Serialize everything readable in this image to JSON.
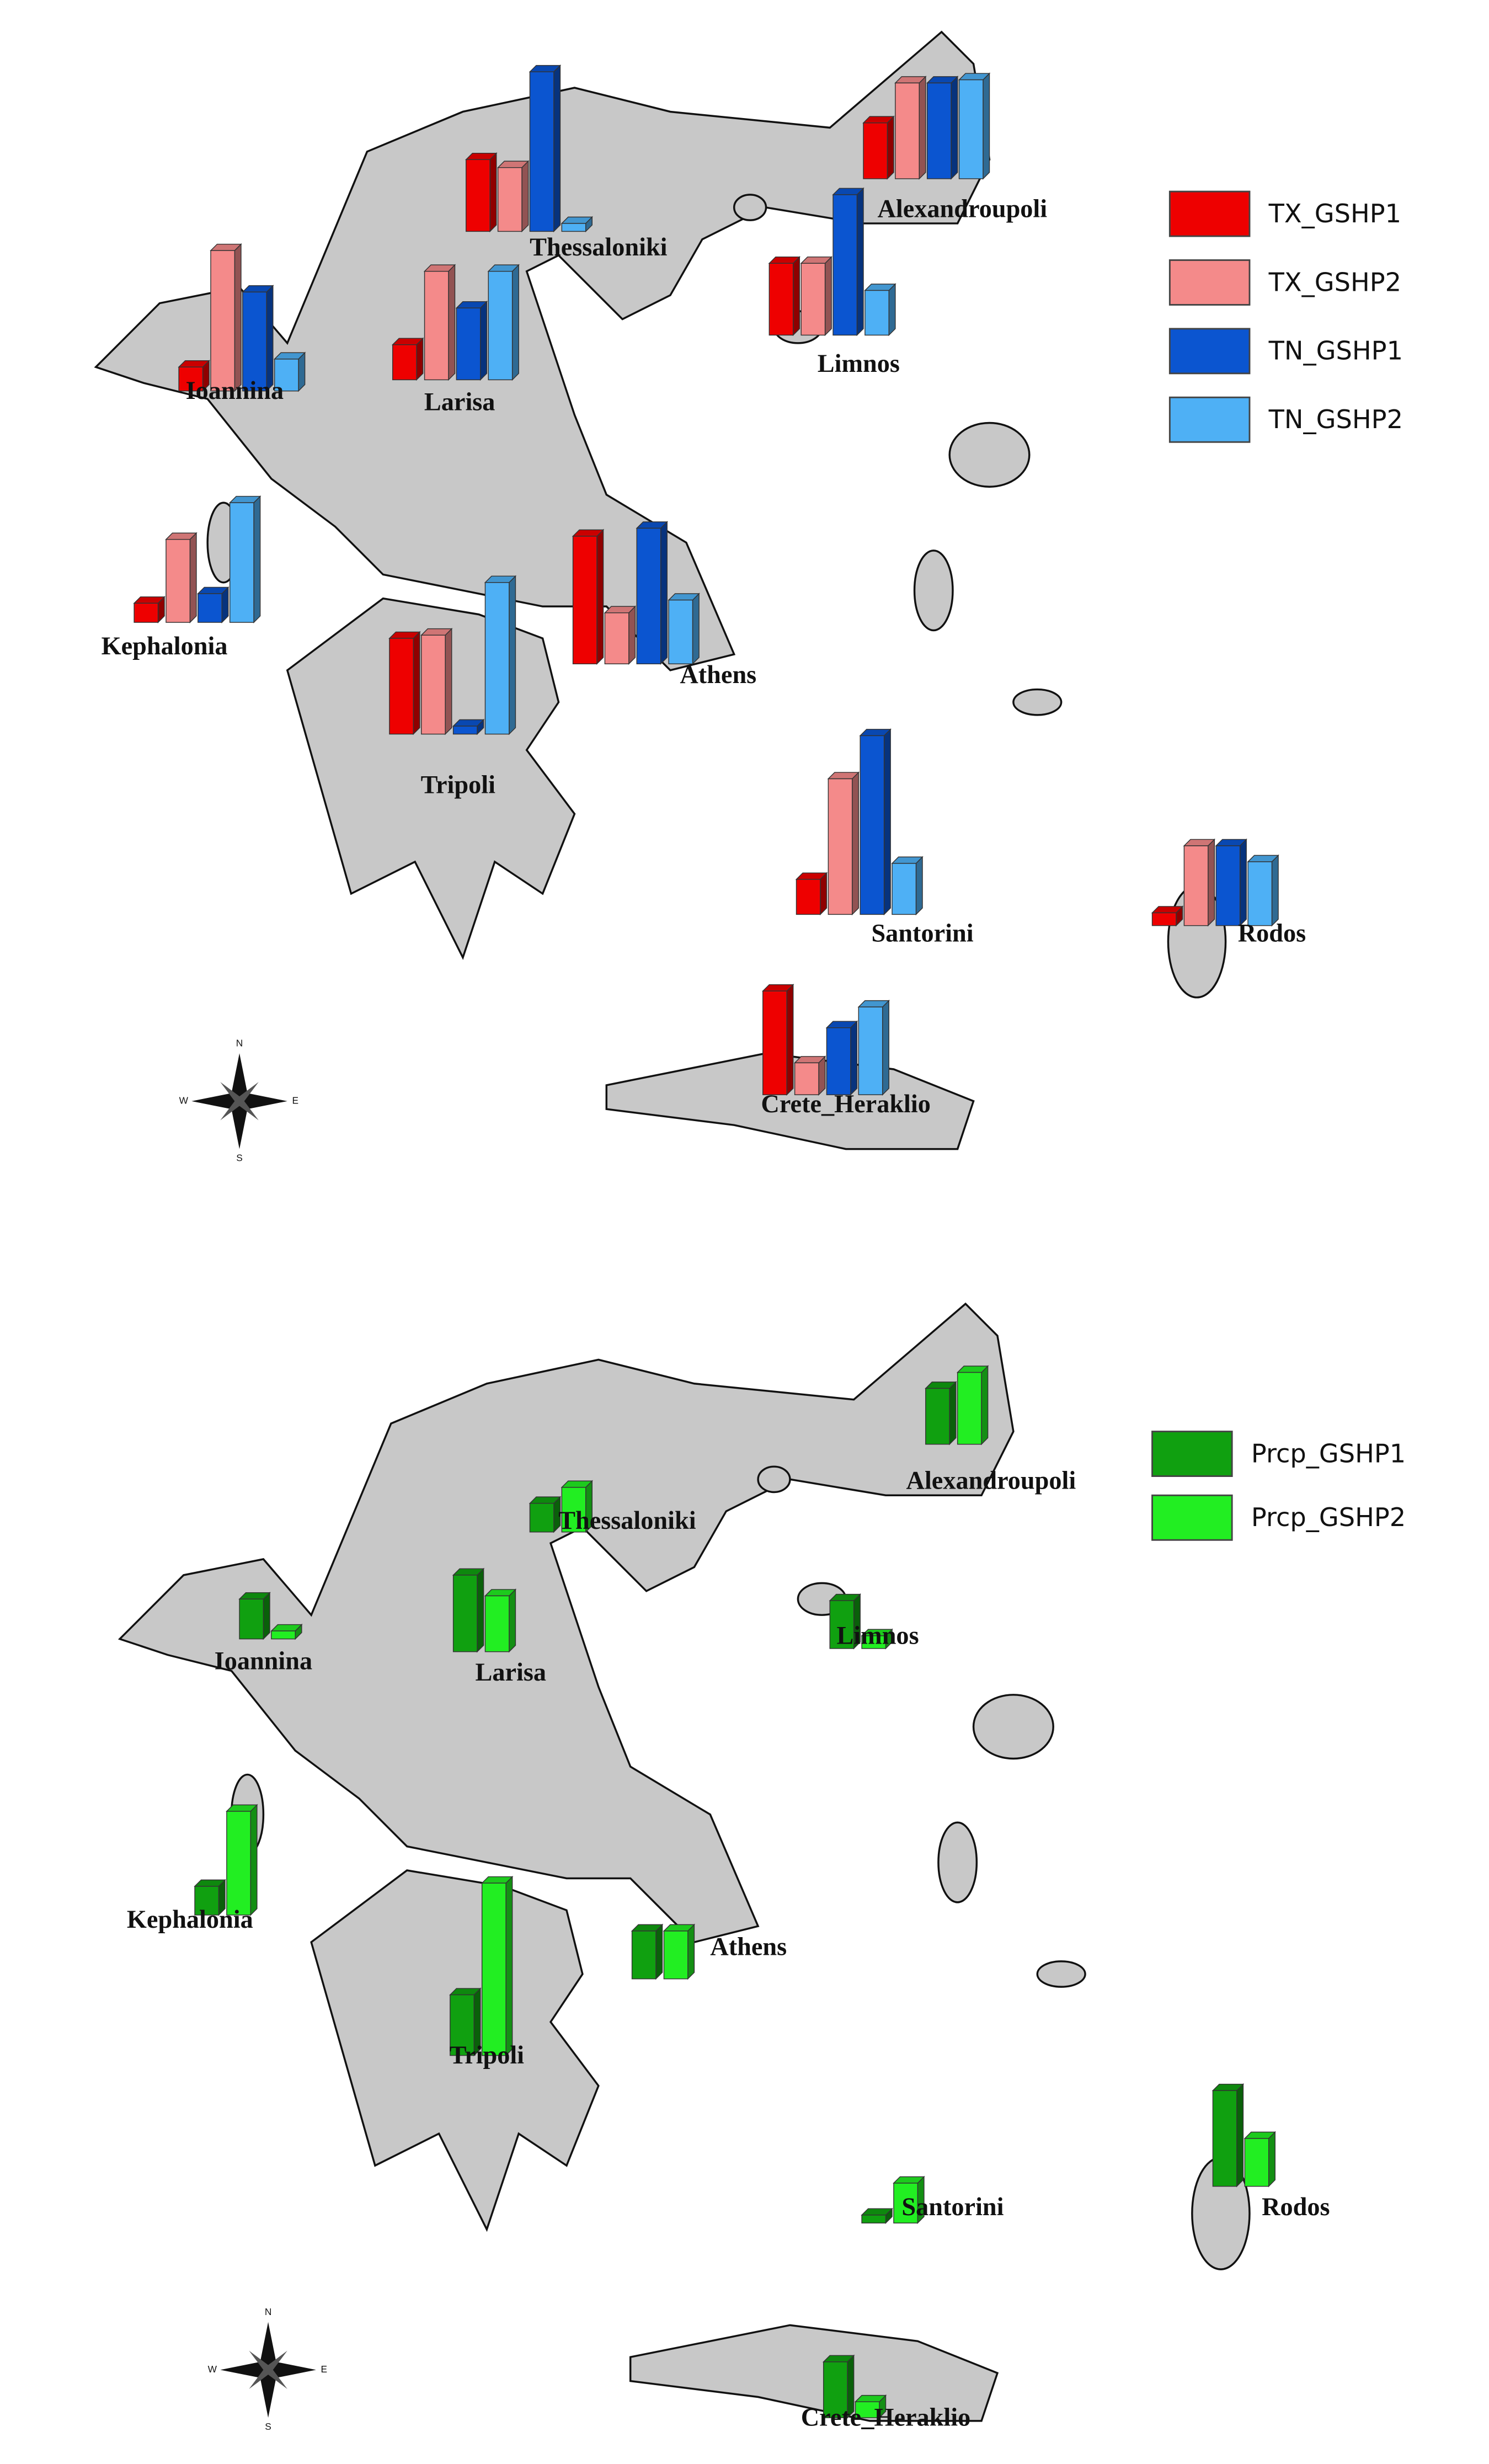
{
  "maps": [
    {
      "legend": [
        {
          "name": "TX_GSHP1",
          "color": "#ee0000"
        },
        {
          "name": "TX_GSHP2",
          "color": "#f48a8a"
        },
        {
          "name": "TN_GSHP1",
          "color": "#0b55d0"
        },
        {
          "name": "TN_GSHP2",
          "color": "#4eb0f5"
        }
      ],
      "cities": [
        {
          "name": "Thessaloniki",
          "values": [
            45,
            40,
            100,
            5
          ]
        },
        {
          "name": "Alexandroupoli",
          "values": [
            35,
            60,
            60,
            62
          ]
        },
        {
          "name": "Ioannina",
          "values": [
            15,
            88,
            62,
            20
          ]
        },
        {
          "name": "Larisa",
          "values": [
            22,
            68,
            45,
            68
          ]
        },
        {
          "name": "Limnos",
          "values": [
            45,
            45,
            88,
            28
          ]
        },
        {
          "name": "Kephalonia",
          "values": [
            12,
            52,
            18,
            75
          ]
        },
        {
          "name": "Tripoli",
          "values": [
            60,
            62,
            5,
            95
          ]
        },
        {
          "name": "Athens",
          "values": [
            80,
            32,
            85,
            40
          ]
        },
        {
          "name": "Santorini",
          "values": [
            22,
            85,
            112,
            32
          ]
        },
        {
          "name": "Rodos",
          "values": [
            8,
            50,
            50,
            40
          ]
        },
        {
          "name": "Crete_Heraklio",
          "values": [
            65,
            20,
            42,
            55
          ]
        }
      ]
    },
    {
      "legend": [
        {
          "name": "Prcp_GSHP1",
          "color": "#10a010"
        },
        {
          "name": "Prcp_GSHP2",
          "color": "#22ee22"
        }
      ],
      "cities": [
        {
          "name": "Thessaloniki",
          "values": [
            18,
            28
          ]
        },
        {
          "name": "Alexandroupoli",
          "values": [
            35,
            45
          ]
        },
        {
          "name": "Ioannina",
          "values": [
            25,
            5
          ]
        },
        {
          "name": "Larisa",
          "values": [
            48,
            35
          ]
        },
        {
          "name": "Limnos",
          "values": [
            30,
            8
          ]
        },
        {
          "name": "Kephalonia",
          "values": [
            18,
            65
          ]
        },
        {
          "name": "Tripoli",
          "values": [
            38,
            108
          ]
        },
        {
          "name": "Athens",
          "values": [
            30,
            30
          ]
        },
        {
          "name": "Santorini",
          "values": [
            5,
            25
          ]
        },
        {
          "name": "Rodos",
          "values": [
            60,
            30
          ]
        },
        {
          "name": "Crete_Heraklio",
          "values": [
            35,
            10
          ]
        }
      ]
    }
  ],
  "compass": [
    "N",
    "E",
    "S",
    "W"
  ]
}
